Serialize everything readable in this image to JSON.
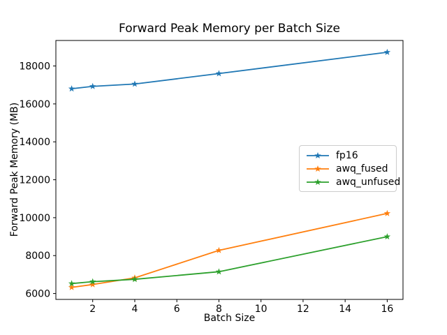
{
  "figure": {
    "title": "Forward Peak Memory per Batch Size",
    "xlabel": "Batch Size",
    "ylabel": "Forward Peak Memory (MB)"
  },
  "chart_data": {
    "type": "line",
    "title": "Forward Peak Memory per Batch Size",
    "xlabel": "Batch Size",
    "ylabel": "Forward Peak Memory (MB)",
    "x": [
      1,
      2,
      4,
      8,
      16
    ],
    "series": [
      {
        "name": "fp16",
        "color": "#1f77b4",
        "marker": "star",
        "values": [
          16800,
          16925,
          17050,
          17600,
          18725
        ]
      },
      {
        "name": "awq_fused",
        "color": "#ff7f0e",
        "marker": "star",
        "values": [
          6325,
          6475,
          6825,
          8275,
          10225
        ]
      },
      {
        "name": "awq_unfused",
        "color": "#2ca02c",
        "marker": "star",
        "values": [
          6525,
          6625,
          6750,
          7150,
          9000
        ]
      }
    ],
    "xlim": [
      0.25,
      16.75
    ],
    "ylim": [
      5690,
      19345
    ],
    "xticks": [
      2,
      4,
      6,
      8,
      10,
      12,
      14,
      16
    ],
    "yticks": [
      6000,
      8000,
      10000,
      12000,
      14000,
      16000,
      18000
    ],
    "grid": false,
    "legend_position": "center-right",
    "axis_color": "#000000",
    "background_color": "#ffffff"
  }
}
